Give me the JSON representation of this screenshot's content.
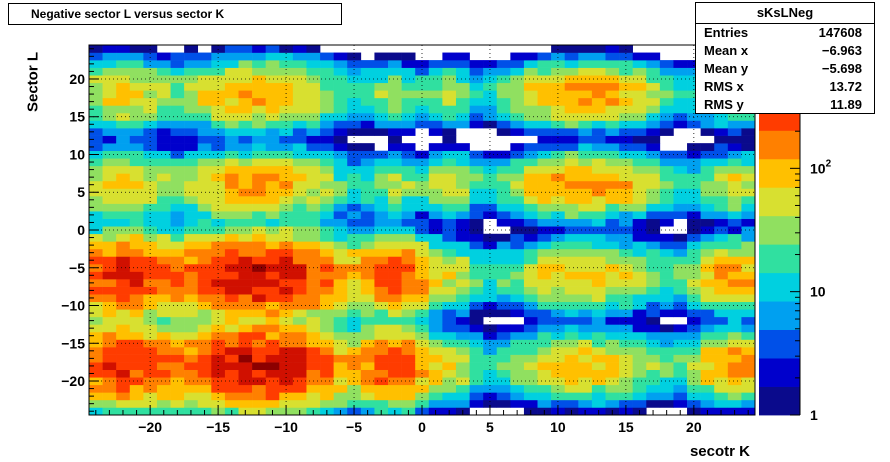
{
  "title": "Negative sector L versus sector K",
  "stats": {
    "name": "sKsLNeg",
    "rows": [
      {
        "label": "Entries",
        "value": "147608"
      },
      {
        "label": "Mean x",
        "value": "−6.963"
      },
      {
        "label": "Mean y",
        "value": "−5.698"
      },
      {
        "label": "RMS x",
        "value": "13.72"
      },
      {
        "label": "RMS y",
        "value": "11.89"
      }
    ]
  },
  "chart_data": {
    "type": "heatmap",
    "title": "Negative sector L versus sector K",
    "xlabel": "secotr K",
    "ylabel": "Sector L",
    "xlim": [
      -24.5,
      24.5
    ],
    "ylim": [
      -24.5,
      24.5
    ],
    "xticks": [
      -20,
      -15,
      -10,
      -5,
      0,
      5,
      10,
      15,
      20
    ],
    "yticks": [
      -20,
      -15,
      -10,
      -5,
      0,
      5,
      10,
      15,
      20
    ],
    "xtick_labels": [
      "−20",
      "−15",
      "−10",
      "−5",
      "0",
      "5",
      "10",
      "15",
      "20"
    ],
    "ytick_labels": [
      "−20",
      "−15",
      "−10",
      "−5",
      "0",
      "5",
      "10",
      "15",
      "20"
    ],
    "grid": true,
    "color_scale": {
      "type": "log",
      "min": 1,
      "max": 1000,
      "tick_labels": [
        {
          "value": 1,
          "base": "1",
          "exp": ""
        },
        {
          "value": 10,
          "base": "10",
          "exp": ""
        },
        {
          "value": 100,
          "base": "10",
          "exp": "2"
        }
      ],
      "palette": [
        "#0a0a8c",
        "#0000cc",
        "#0050e8",
        "#00a0f0",
        "#00d0e0",
        "#30e0a0",
        "#90e060",
        "#d8e030",
        "#ffc000",
        "#ff8000",
        "#ff3c00",
        "#d01000",
        "#8c0000"
      ]
    },
    "clusters": [
      {
        "xc": -12,
        "yc": -18,
        "sx": 3.6,
        "sy": 2.6,
        "peak": 520
      },
      {
        "xc": -12,
        "yc": -6,
        "sx": 3.6,
        "sy": 2.6,
        "peak": 520
      },
      {
        "xc": -12,
        "yc": 6,
        "sx": 3.4,
        "sy": 2.2,
        "peak": 120
      },
      {
        "xc": -12,
        "yc": 18,
        "sx": 3.4,
        "sy": 2.2,
        "peak": 120
      },
      {
        "xc": -22,
        "yc": -18,
        "sx": 2.2,
        "sy": 2.6,
        "peak": 350
      },
      {
        "xc": -22,
        "yc": -6,
        "sx": 2.2,
        "sy": 2.6,
        "peak": 350
      },
      {
        "xc": -22,
        "yc": 6,
        "sx": 2.0,
        "sy": 2.2,
        "peak": 80
      },
      {
        "xc": -22,
        "yc": 18,
        "sx": 2.0,
        "sy": 2.2,
        "peak": 80
      },
      {
        "xc": -2,
        "yc": -18,
        "sx": 1.4,
        "sy": 2.4,
        "peak": 300
      },
      {
        "xc": -2,
        "yc": -6,
        "sx": 1.4,
        "sy": 2.4,
        "peak": 300
      },
      {
        "xc": -2,
        "yc": 6,
        "sx": 1.2,
        "sy": 2.0,
        "peak": 40
      },
      {
        "xc": -2,
        "yc": 18,
        "sx": 1.2,
        "sy": 2.0,
        "peak": 40
      },
      {
        "xc": 2,
        "yc": -18,
        "sx": 1.4,
        "sy": 2.2,
        "peak": 60
      },
      {
        "xc": 2,
        "yc": -6,
        "sx": 1.4,
        "sy": 2.2,
        "peak": 60
      },
      {
        "xc": 2,
        "yc": 6,
        "sx": 1.2,
        "sy": 2.0,
        "peak": 60
      },
      {
        "xc": 2,
        "yc": 18,
        "sx": 1.2,
        "sy": 2.0,
        "peak": 40
      },
      {
        "xc": 12,
        "yc": -18,
        "sx": 3.4,
        "sy": 2.2,
        "peak": 90
      },
      {
        "xc": 12,
        "yc": -6,
        "sx": 3.4,
        "sy": 2.2,
        "peak": 90
      },
      {
        "xc": 12,
        "yc": 6,
        "sx": 3.2,
        "sy": 2.0,
        "peak": 150
      },
      {
        "xc": 12,
        "yc": 18,
        "sx": 3.2,
        "sy": 2.0,
        "peak": 150
      },
      {
        "xc": 23,
        "yc": -18,
        "sx": 1.8,
        "sy": 2.2,
        "peak": 150
      },
      {
        "xc": 23,
        "yc": -6,
        "sx": 1.8,
        "sy": 2.2,
        "peak": 150
      },
      {
        "xc": 23,
        "yc": 6,
        "sx": 1.6,
        "sy": 2.0,
        "peak": 60
      },
      {
        "xc": 23,
        "yc": 18,
        "sx": 1.6,
        "sy": 2.0,
        "peak": 60
      }
    ]
  }
}
